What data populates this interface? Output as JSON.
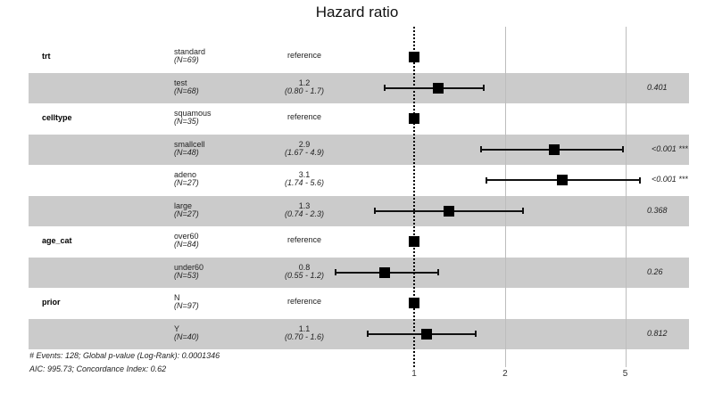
{
  "chart_data": {
    "type": "forest",
    "title": "Hazard ratio",
    "xlabel": "",
    "ylabel": "",
    "x_scale": "log",
    "x_ticks": [
      1,
      2,
      5
    ],
    "reference_line": 1,
    "rows": [
      {
        "variable": "trt",
        "level": "standard",
        "n": "(N=69)",
        "hr": 1.0,
        "estimate_label": "reference",
        "ci_label": "",
        "lower": null,
        "upper": null,
        "p": ""
      },
      {
        "variable": "",
        "level": "test",
        "n": "(N=68)",
        "hr": 1.2,
        "estimate_label": "1.2",
        "ci_label": "(0.80 - 1.7)",
        "lower": 0.8,
        "upper": 1.7,
        "p": "0.401"
      },
      {
        "variable": "celltype",
        "level": "squamous",
        "n": "(N=35)",
        "hr": 1.0,
        "estimate_label": "reference",
        "ci_label": "",
        "lower": null,
        "upper": null,
        "p": ""
      },
      {
        "variable": "",
        "level": "smallcell",
        "n": "(N=48)",
        "hr": 2.9,
        "estimate_label": "2.9",
        "ci_label": "(1.67 - 4.9)",
        "lower": 1.67,
        "upper": 4.9,
        "p": "<0.001 ***"
      },
      {
        "variable": "",
        "level": "adeno",
        "n": "(N=27)",
        "hr": 3.1,
        "estimate_label": "3.1",
        "ci_label": "(1.74 - 5.6)",
        "lower": 1.74,
        "upper": 5.6,
        "p": "<0.001 ***"
      },
      {
        "variable": "",
        "level": "large",
        "n": "(N=27)",
        "hr": 1.3,
        "estimate_label": "1.3",
        "ci_label": "(0.74 - 2.3)",
        "lower": 0.74,
        "upper": 2.3,
        "p": "0.368"
      },
      {
        "variable": "age_cat",
        "level": "over60",
        "n": "(N=84)",
        "hr": 1.0,
        "estimate_label": "reference",
        "ci_label": "",
        "lower": null,
        "upper": null,
        "p": ""
      },
      {
        "variable": "",
        "level": "under60",
        "n": "(N=53)",
        "hr": 0.8,
        "estimate_label": "0.8",
        "ci_label": "(0.55 - 1.2)",
        "lower": 0.55,
        "upper": 1.2,
        "p": "0.26"
      },
      {
        "variable": "prior",
        "level": "N",
        "n": "(N=97)",
        "hr": 1.0,
        "estimate_label": "reference",
        "ci_label": "",
        "lower": null,
        "upper": null,
        "p": ""
      },
      {
        "variable": "",
        "level": "Y",
        "n": "(N=40)",
        "hr": 1.1,
        "estimate_label": "1.1",
        "ci_label": "(0.70 - 1.6)",
        "lower": 0.7,
        "upper": 1.6,
        "p": "0.812"
      }
    ],
    "footnotes": [
      "# Events: 128; Global p-value (Log-Rank): 0.0001346",
      "AIC: 995.73; Concordance Index: 0.62"
    ]
  },
  "colors": {
    "band": "#cbcbcb",
    "marker": "#000000",
    "grid": "#bdbdbd"
  }
}
